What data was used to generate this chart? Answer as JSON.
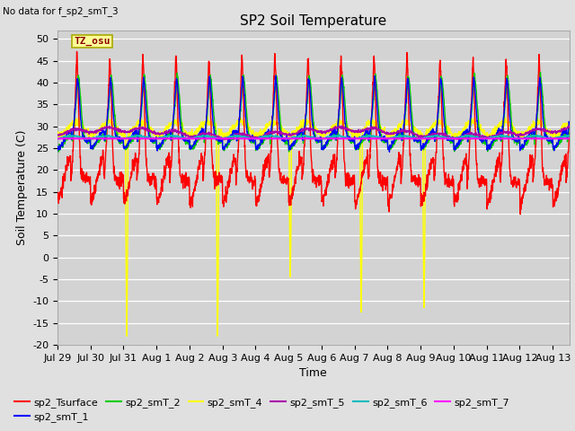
{
  "title": "SP2 Soil Temperature",
  "no_data_label": "No data for f_sp2_smT_3",
  "tz_label": "TZ_osu",
  "ylabel": "Soil Temperature (C)",
  "xlabel": "Time",
  "xlim_days": [
    0,
    15.5
  ],
  "ylim": [
    -20,
    52
  ],
  "yticks": [
    -20,
    -15,
    -10,
    -5,
    0,
    5,
    10,
    15,
    20,
    25,
    30,
    35,
    40,
    45,
    50
  ],
  "xtick_labels": [
    "Jul 29",
    "Jul 30",
    "Jul 31",
    "Aug 1",
    "Aug 2",
    "Aug 3",
    "Aug 4",
    "Aug 5",
    "Aug 6",
    "Aug 7",
    "Aug 8",
    "Aug 9",
    "Aug 10",
    "Aug 11",
    "Aug 12",
    "Aug 13"
  ],
  "xtick_positions": [
    0,
    1,
    2,
    3,
    4,
    5,
    6,
    7,
    8,
    9,
    10,
    11,
    12,
    13,
    14,
    15
  ],
  "series_colors": {
    "sp2_Tsurface": "#ff0000",
    "sp2_smT_1": "#0000ff",
    "sp2_smT_2": "#00cc00",
    "sp2_smT_4": "#ffff00",
    "sp2_smT_5": "#aa00aa",
    "sp2_smT_6": "#00bbbb",
    "sp2_smT_7": "#ff00ff"
  },
  "background_color": "#e0e0e0",
  "plot_bg_color": "#d3d3d3",
  "title_fontsize": 11,
  "axis_fontsize": 9,
  "tick_fontsize": 8
}
